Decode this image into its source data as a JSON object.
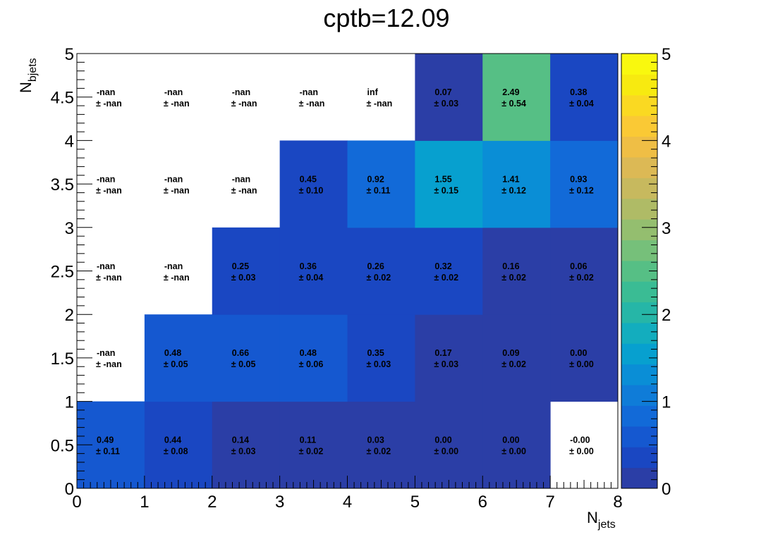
{
  "chart_data": {
    "type": "heatmap",
    "title": "cptb=12.09",
    "xlabel": {
      "main": "N",
      "sub": "jets"
    },
    "ylabel": {
      "main": "N",
      "sub": "bjets"
    },
    "xlim": [
      0,
      8
    ],
    "ylim": [
      0,
      5
    ],
    "x_ticks": [
      "0",
      "1",
      "2",
      "3",
      "4",
      "5",
      "6",
      "7",
      "8"
    ],
    "y_ticks": [
      "0",
      "0.5",
      "1",
      "1.5",
      "2",
      "2.5",
      "3",
      "3.5",
      "4",
      "4.5",
      "5"
    ],
    "colorbar": {
      "range": [
        0,
        5
      ],
      "ticks": [
        "0",
        "1",
        "2",
        "3",
        "4",
        "5"
      ],
      "colors": [
        "#2b3ea6",
        "#1a47c2",
        "#1558d0",
        "#126ad8",
        "#0f7cd8",
        "#0a8ed6",
        "#07a0cf",
        "#13adbe",
        "#26b6a7",
        "#3abc94",
        "#56bf85",
        "#76c07a",
        "#94be6f",
        "#afbb66",
        "#c7b95e",
        "#dcb955",
        "#efbe45",
        "#fac935",
        "#fad922",
        "#f7ea10",
        "#f9f80e"
      ]
    },
    "cells": [
      {
        "ix": 0,
        "iy": 0,
        "value": 0.49,
        "label": "0.49",
        "err_label": "± 0.11"
      },
      {
        "ix": 1,
        "iy": 0,
        "value": 0.44,
        "label": "0.44",
        "err_label": "± 0.08"
      },
      {
        "ix": 2,
        "iy": 0,
        "value": 0.14,
        "label": "0.14",
        "err_label": "± 0.03"
      },
      {
        "ix": 3,
        "iy": 0,
        "value": 0.11,
        "label": "0.11",
        "err_label": "± 0.02"
      },
      {
        "ix": 4,
        "iy": 0,
        "value": 0.03,
        "label": "0.03",
        "err_label": "± 0.02"
      },
      {
        "ix": 5,
        "iy": 0,
        "value": 0.0,
        "label": "0.00",
        "err_label": "± 0.00"
      },
      {
        "ix": 6,
        "iy": 0,
        "value": 0.0,
        "label": "0.00",
        "err_label": "± 0.00"
      },
      {
        "ix": 7,
        "iy": 0,
        "value": null,
        "label": "-0.00",
        "err_label": "± 0.00"
      },
      {
        "ix": 0,
        "iy": 1,
        "value": null,
        "label": "-nan",
        "err_label": "± -nan"
      },
      {
        "ix": 1,
        "iy": 1,
        "value": 0.48,
        "label": "0.48",
        "err_label": "± 0.05"
      },
      {
        "ix": 2,
        "iy": 1,
        "value": 0.66,
        "label": "0.66",
        "err_label": "± 0.05"
      },
      {
        "ix": 3,
        "iy": 1,
        "value": 0.48,
        "label": "0.48",
        "err_label": "± 0.06"
      },
      {
        "ix": 4,
        "iy": 1,
        "value": 0.35,
        "label": "0.35",
        "err_label": "± 0.03"
      },
      {
        "ix": 5,
        "iy": 1,
        "value": 0.17,
        "label": "0.17",
        "err_label": "± 0.03"
      },
      {
        "ix": 6,
        "iy": 1,
        "value": 0.09,
        "label": "0.09",
        "err_label": "± 0.02"
      },
      {
        "ix": 7,
        "iy": 1,
        "value": 0.0,
        "label": "0.00",
        "err_label": "± 0.00"
      },
      {
        "ix": 0,
        "iy": 2,
        "value": null,
        "label": "-nan",
        "err_label": "± -nan"
      },
      {
        "ix": 1,
        "iy": 2,
        "value": null,
        "label": "-nan",
        "err_label": "± -nan"
      },
      {
        "ix": 2,
        "iy": 2,
        "value": 0.25,
        "label": "0.25",
        "err_label": "± 0.03"
      },
      {
        "ix": 3,
        "iy": 2,
        "value": 0.36,
        "label": "0.36",
        "err_label": "± 0.04"
      },
      {
        "ix": 4,
        "iy": 2,
        "value": 0.26,
        "label": "0.26",
        "err_label": "± 0.02"
      },
      {
        "ix": 5,
        "iy": 2,
        "value": 0.32,
        "label": "0.32",
        "err_label": "± 0.02"
      },
      {
        "ix": 6,
        "iy": 2,
        "value": 0.16,
        "label": "0.16",
        "err_label": "± 0.02"
      },
      {
        "ix": 7,
        "iy": 2,
        "value": 0.06,
        "label": "0.06",
        "err_label": "± 0.02"
      },
      {
        "ix": 0,
        "iy": 3,
        "value": null,
        "label": "-nan",
        "err_label": "± -nan"
      },
      {
        "ix": 1,
        "iy": 3,
        "value": null,
        "label": "-nan",
        "err_label": "± -nan"
      },
      {
        "ix": 2,
        "iy": 3,
        "value": null,
        "label": "-nan",
        "err_label": "± -nan"
      },
      {
        "ix": 3,
        "iy": 3,
        "value": 0.45,
        "label": "0.45",
        "err_label": "± 0.10"
      },
      {
        "ix": 4,
        "iy": 3,
        "value": 0.92,
        "label": "0.92",
        "err_label": "± 0.11"
      },
      {
        "ix": 5,
        "iy": 3,
        "value": 1.55,
        "label": "1.55",
        "err_label": "± 0.15"
      },
      {
        "ix": 6,
        "iy": 3,
        "value": 1.41,
        "label": "1.41",
        "err_label": "± 0.12"
      },
      {
        "ix": 7,
        "iy": 3,
        "value": 0.93,
        "label": "0.93",
        "err_label": "± 0.12"
      },
      {
        "ix": 0,
        "iy": 4,
        "value": null,
        "label": "-nan",
        "err_label": "± -nan"
      },
      {
        "ix": 1,
        "iy": 4,
        "value": null,
        "label": "-nan",
        "err_label": "± -nan"
      },
      {
        "ix": 2,
        "iy": 4,
        "value": null,
        "label": "-nan",
        "err_label": "± -nan"
      },
      {
        "ix": 3,
        "iy": 4,
        "value": null,
        "label": "-nan",
        "err_label": "± -nan"
      },
      {
        "ix": 4,
        "iy": 4,
        "value": null,
        "label": "inf",
        "err_label": "± -nan"
      },
      {
        "ix": 5,
        "iy": 4,
        "value": 0.07,
        "label": "0.07",
        "err_label": "± 0.03"
      },
      {
        "ix": 6,
        "iy": 4,
        "value": 2.49,
        "label": "2.49",
        "err_label": "± 0.54"
      },
      {
        "ix": 7,
        "iy": 4,
        "value": 0.38,
        "label": "0.38",
        "err_label": "± 0.04"
      }
    ]
  }
}
